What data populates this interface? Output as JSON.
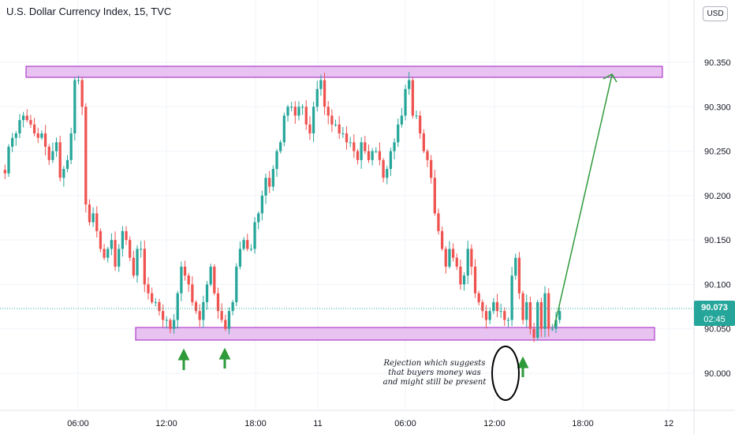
{
  "header": {
    "title": "U.S. Dollar Currency Index, 15, TVC",
    "currency_button": "USD"
  },
  "price_tag": {
    "price": "90.073",
    "countdown": "02:45",
    "color": "#26a69a"
  },
  "annotation": {
    "lines": [
      "Rejection which suggests",
      "that buyers money was",
      "and might still be present"
    ]
  },
  "colors": {
    "up": "#26a69a",
    "down": "#ef5350",
    "zone_fill": "#e8c2f0",
    "zone_stroke": "#a020c0",
    "target_arrow": "#2e9a3a",
    "marker_arrow": "#2e9a3a"
  },
  "chart_data": {
    "type": "candlestick",
    "title": "U.S. Dollar Currency Index, 15, TVC",
    "y_ticks": [
      "90.350",
      "90.300",
      "90.250",
      "90.200",
      "90.150",
      "90.100",
      "90.050",
      "90.000"
    ],
    "x_ticks": [
      "06:00",
      "12:00",
      "18:00",
      "11",
      "06:00",
      "12:00",
      "18:00",
      "12"
    ],
    "ylim": [
      89.95,
      90.37
    ],
    "last_price": 90.073,
    "resistance_zone": [
      90.332,
      90.345
    ],
    "support_zone": [
      90.037,
      90.052
    ],
    "grid": true,
    "close_path": [
      90.225,
      90.255,
      90.265,
      90.27,
      90.285,
      90.29,
      90.285,
      90.28,
      90.27,
      90.265,
      90.27,
      90.255,
      90.24,
      90.25,
      90.26,
      90.22,
      90.23,
      90.24,
      90.27,
      90.33,
      90.33,
      90.3,
      90.19,
      90.17,
      90.18,
      90.16,
      90.14,
      90.13,
      90.14,
      90.15,
      90.12,
      90.14,
      90.16,
      90.15,
      90.13,
      90.11,
      90.14,
      90.14,
      90.1,
      90.09,
      90.08,
      90.08,
      90.07,
      90.06,
      90.06,
      90.05,
      90.06,
      90.09,
      90.12,
      90.11,
      90.1,
      90.08,
      90.07,
      90.06,
      90.08,
      90.1,
      90.12,
      90.09,
      90.07,
      90.06,
      90.05,
      90.07,
      90.08,
      90.12,
      90.14,
      90.15,
      90.14,
      90.14,
      90.17,
      90.18,
      90.2,
      90.22,
      90.21,
      90.23,
      90.25,
      90.26,
      90.29,
      90.3,
      90.3,
      90.29,
      90.3,
      90.3,
      90.28,
      90.27,
      90.3,
      90.32,
      90.33,
      90.3,
      90.29,
      90.28,
      90.28,
      90.27,
      90.27,
      90.26,
      90.26,
      90.25,
      90.24,
      90.26,
      90.25,
      90.24,
      90.25,
      90.25,
      90.24,
      90.22,
      90.23,
      90.25,
      90.26,
      90.28,
      90.29,
      90.32,
      90.33,
      90.29,
      90.29,
      90.27,
      90.25,
      90.24,
      90.22,
      90.18,
      90.16,
      90.14,
      90.12,
      90.14,
      90.13,
      90.12,
      90.1,
      90.11,
      90.14,
      90.12,
      90.09,
      90.08,
      90.07,
      90.06,
      90.07,
      90.08,
      90.07,
      90.07,
      90.06,
      90.06,
      90.11,
      90.13,
      90.09,
      90.06,
      90.08,
      90.05,
      90.04,
      90.08,
      90.05,
      90.09,
      90.05,
      90.05,
      90.06,
      90.07
    ]
  }
}
